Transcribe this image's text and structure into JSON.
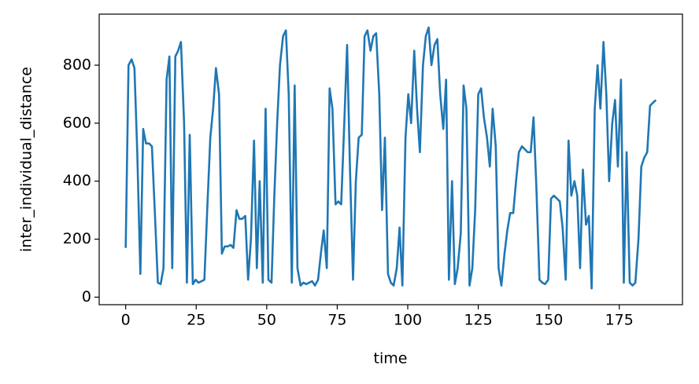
{
  "chart_data": {
    "type": "line",
    "xlabel": "time",
    "ylabel": "inter_individual_distance",
    "x": [
      0,
      1.0,
      2.1,
      3.1,
      4.1,
      5.2,
      6.2,
      7.2,
      8.3,
      9.3,
      10.3,
      11.4,
      12.4,
      13.4,
      14.5,
      15.5,
      16.5,
      17.6,
      18.6,
      19.6,
      20.7,
      21.7,
      22.7,
      23.8,
      24.8,
      25.8,
      26.9,
      27.9,
      28.9,
      30.0,
      31.0,
      32.0,
      33.1,
      34.1,
      35.1,
      36.2,
      37.2,
      38.2,
      39.3,
      40.3,
      41.3,
      42.4,
      43.4,
      44.4,
      45.5,
      46.5,
      47.5,
      48.6,
      49.6,
      50.6,
      51.7,
      52.7,
      53.7,
      54.7,
      55.8,
      56.8,
      57.8,
      58.9,
      59.9,
      60.9,
      62.0,
      63.0,
      64.0,
      65.1,
      66.1,
      67.1,
      68.2,
      69.2,
      70.2,
      71.3,
      72.3,
      73.3,
      74.4,
      75.4,
      76.4,
      77.5,
      78.5,
      79.5,
      80.6,
      81.6,
      82.6,
      83.7,
      84.7,
      85.7,
      86.8,
      87.8,
      88.8,
      89.9,
      90.9,
      91.9,
      93.0,
      94.0,
      95.0,
      96.1,
      97.1,
      98.1,
      99.2,
      100.2,
      101.2,
      102.3,
      103.3,
      104.3,
      105.4,
      106.4,
      107.4,
      108.4,
      109.5,
      110.5,
      111.5,
      112.6,
      113.6,
      114.6,
      115.7,
      116.7,
      117.7,
      118.8,
      119.8,
      120.8,
      121.9,
      122.9,
      123.9,
      125.0,
      126.0,
      127.0,
      128.1,
      129.1,
      130.1,
      131.2,
      132.2,
      133.2,
      134.3,
      135.3,
      136.3,
      137.4,
      138.4,
      139.4,
      140.5,
      141.5,
      142.5,
      143.6,
      144.6,
      145.6,
      146.7,
      147.7,
      148.7,
      149.8,
      150.8,
      151.8,
      152.9,
      153.9,
      154.9,
      156.0,
      157.0,
      158.0,
      159.1,
      160.1,
      161.1,
      162.1,
      163.2,
      164.2,
      165.2,
      166.3,
      167.3,
      168.3,
      169.4,
      170.4,
      171.4,
      172.5,
      173.5,
      174.5,
      175.6,
      176.6,
      177.6,
      178.7,
      179.7,
      180.7,
      181.8,
      182.8,
      183.8,
      184.9,
      185.9,
      186.9,
      188.0
    ],
    "series": [
      {
        "name": "inter_individual_distance",
        "color": "#1f77b4",
        "values": [
          170,
          800,
          820,
          790,
          500,
          80,
          580,
          530,
          530,
          520,
          300,
          50,
          45,
          100,
          750,
          830,
          100,
          830,
          850,
          880,
          600,
          50,
          560,
          45,
          60,
          50,
          55,
          60,
          300,
          550,
          650,
          790,
          700,
          150,
          175,
          175,
          180,
          170,
          300,
          270,
          270,
          280,
          60,
          200,
          540,
          100,
          400,
          50,
          650,
          60,
          50,
          350,
          600,
          800,
          900,
          920,
          700,
          50,
          730,
          100,
          40,
          50,
          45,
          50,
          55,
          40,
          60,
          150,
          230,
          100,
          720,
          650,
          320,
          330,
          320,
          600,
          870,
          450,
          60,
          400,
          550,
          560,
          900,
          920,
          850,
          900,
          910,
          700,
          300,
          550,
          80,
          50,
          40,
          100,
          240,
          40,
          550,
          700,
          600,
          850,
          650,
          500,
          800,
          900,
          930,
          800,
          870,
          890,
          700,
          580,
          750,
          60,
          400,
          45,
          100,
          220,
          730,
          650,
          40,
          100,
          300,
          700,
          720,
          620,
          550,
          450,
          650,
          520,
          100,
          40,
          150,
          230,
          290,
          290,
          400,
          500,
          520,
          510,
          500,
          500,
          620,
          380,
          60,
          50,
          45,
          60,
          340,
          350,
          340,
          330,
          240,
          60,
          540,
          350,
          400,
          350,
          100,
          440,
          250,
          280,
          30,
          650,
          800,
          650,
          880,
          700,
          400,
          600,
          680,
          450,
          750,
          50,
          500,
          50,
          40,
          50,
          200,
          450,
          480,
          500,
          660,
          670,
          680
        ]
      }
    ],
    "xlim": [
      -9.4,
      197.4
    ],
    "xticks": [
      0,
      25,
      50,
      75,
      100,
      125,
      150,
      175
    ],
    "ylim": [
      -26,
      976
    ],
    "yticks": [
      0,
      200,
      400,
      600,
      800
    ]
  }
}
